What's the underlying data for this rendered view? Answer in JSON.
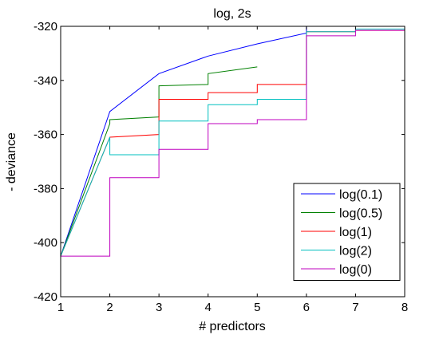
{
  "chart_data": {
    "type": "line",
    "title": "log, 2s",
    "xlabel": "# predictors",
    "ylabel": "- deviance",
    "xlim": [
      1,
      8
    ],
    "ylim": [
      -420,
      -320
    ],
    "xticks": [
      1,
      2,
      3,
      4,
      5,
      6,
      7,
      8
    ],
    "yticks": [
      -420,
      -400,
      -380,
      -360,
      -340,
      -320
    ],
    "xtick_labels": [
      "1",
      "2",
      "3",
      "4",
      "5",
      "6",
      "7",
      "8"
    ],
    "ytick_labels": [
      "-420",
      "-400",
      "-380",
      "-360",
      "-340",
      "-320"
    ],
    "grid": false,
    "legend_position": "bottom-right",
    "series": [
      {
        "name": "log(0.1)",
        "color": "#0000ff",
        "points": [
          [
            1,
            -405
          ],
          [
            2,
            -351.5
          ],
          [
            3,
            -337.5
          ],
          [
            4,
            -331
          ],
          [
            5,
            -326.5
          ],
          [
            6,
            -322.5
          ],
          [
            6,
            -319.5
          ],
          [
            8,
            -319.5
          ]
        ]
      },
      {
        "name": "log(0.5)",
        "color": "#008000",
        "points": [
          [
            1,
            -405
          ],
          [
            2,
            -356
          ],
          [
            2,
            -354.5
          ],
          [
            3,
            -353.5
          ],
          [
            3,
            -342
          ],
          [
            4,
            -341.5
          ],
          [
            4,
            -337.5
          ],
          [
            5,
            -335
          ]
        ]
      },
      {
        "name": "log(1)",
        "color": "#ff0000",
        "points": [
          [
            1,
            -405
          ],
          [
            2,
            -361
          ],
          [
            2,
            -361
          ],
          [
            3,
            -360
          ],
          [
            3,
            -347
          ],
          [
            4,
            -347
          ],
          [
            4,
            -344.5
          ],
          [
            5,
            -344.5
          ],
          [
            5,
            -341.5
          ],
          [
            6,
            -341.5
          ],
          [
            6,
            -322
          ],
          [
            7,
            -322
          ],
          [
            7,
            -321.5
          ],
          [
            8,
            -321.5
          ]
        ]
      },
      {
        "name": "log(2)",
        "color": "#00bfbf",
        "points": [
          [
            1,
            -405
          ],
          [
            2,
            -361
          ],
          [
            2,
            -367.5
          ],
          [
            3,
            -367.5
          ],
          [
            3,
            -355
          ],
          [
            4,
            -355
          ],
          [
            4,
            -349
          ],
          [
            5,
            -349
          ],
          [
            5,
            -347
          ],
          [
            6,
            -347
          ],
          [
            6,
            -322
          ],
          [
            7,
            -322
          ],
          [
            7,
            -321
          ],
          [
            8,
            -321
          ]
        ]
      },
      {
        "name": "log(0)",
        "color": "#bf00bf",
        "points": [
          [
            1,
            -405
          ],
          [
            2,
            -405
          ],
          [
            2,
            -376
          ],
          [
            3,
            -376
          ],
          [
            3,
            -365.5
          ],
          [
            4,
            -365.5
          ],
          [
            4,
            -356
          ],
          [
            5,
            -356
          ],
          [
            5,
            -354.5
          ],
          [
            6,
            -354.5
          ],
          [
            6,
            -323.5
          ],
          [
            7,
            -323.5
          ],
          [
            7,
            -321.5
          ],
          [
            8,
            -321.5
          ]
        ]
      }
    ]
  }
}
